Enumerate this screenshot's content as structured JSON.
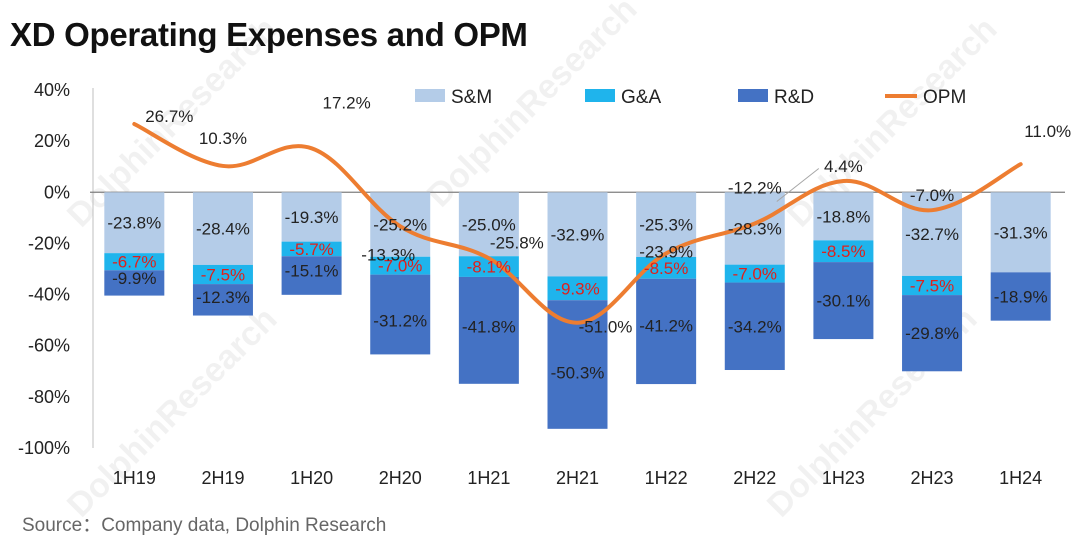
{
  "title": "XD Operating Expenses and OPM",
  "source": "Source：Company data, Dolphin Research",
  "watermark": "DolphinResearch",
  "chart_data": {
    "type": "bar",
    "stacked": true,
    "categories": [
      "1H19",
      "2H19",
      "1H20",
      "2H20",
      "1H21",
      "2H21",
      "1H22",
      "2H22",
      "1H23",
      "2H23",
      "1H24"
    ],
    "ylim": [
      -100,
      40
    ],
    "yticks": [
      40,
      20,
      0,
      -20,
      -40,
      -60,
      -80,
      -100
    ],
    "ytick_labels": [
      "40%",
      "20%",
      "0%",
      "-20%",
      "-40%",
      "-60%",
      "-80%",
      "-100%"
    ],
    "legend_position": "top-right",
    "series": [
      {
        "name": "S&M",
        "kind": "bar",
        "color": "#b4cce8",
        "label_color": "#222222",
        "values": [
          -23.8,
          -28.4,
          -19.3,
          -25.2,
          -25.0,
          -32.9,
          -25.3,
          -28.3,
          -18.8,
          -32.7,
          -31.3
        ],
        "labels": [
          "-23.8%",
          "-28.4%",
          "-19.3%",
          "-25.2%",
          "-25.0%",
          "-32.9%",
          "-25.3%",
          "-28.3%",
          "-18.8%",
          "-32.7%",
          "-31.3%"
        ]
      },
      {
        "name": "G&A",
        "kind": "bar",
        "color": "#1fb4ec",
        "label_color": "#e0201b",
        "values": [
          -6.7,
          -7.5,
          -5.7,
          -7.0,
          -8.1,
          -9.3,
          -8.5,
          -7.0,
          -8.5,
          -7.5,
          null
        ],
        "labels": [
          "-6.7%",
          "-7.5%",
          "-5.7%",
          "-7.0%",
          "-8.1%",
          "-9.3%",
          "-8.5%",
          "-7.0%",
          "-8.5%",
          "-7.5%",
          null
        ]
      },
      {
        "name": "R&D",
        "kind": "bar",
        "color": "#4472c4",
        "label_color": "#222222",
        "values": [
          -9.9,
          -12.3,
          -15.1,
          -31.2,
          -41.8,
          -50.3,
          -41.2,
          -34.2,
          -30.1,
          -29.8,
          -18.9
        ],
        "labels": [
          "-9.9%",
          "-12.3%",
          "-15.1%",
          "-31.2%",
          "-41.8%",
          "-50.3%",
          "-41.2%",
          "-34.2%",
          "-30.1%",
          "-29.8%",
          "-18.9%"
        ]
      },
      {
        "name": "OPM",
        "kind": "line",
        "color": "#ed7d31",
        "label_color": "#222222",
        "values": [
          26.7,
          10.3,
          17.2,
          -13.3,
          -25.8,
          -51.0,
          -23.9,
          -12.2,
          4.4,
          -7.0,
          11.0
        ],
        "labels": [
          "26.7%",
          "10.3%",
          "17.2%",
          "-13.3%",
          "-25.8%",
          "-51.0%",
          "-23.9%",
          "-12.2%",
          "4.4%",
          "-7.0%",
          "11.0%"
        ]
      }
    ]
  }
}
